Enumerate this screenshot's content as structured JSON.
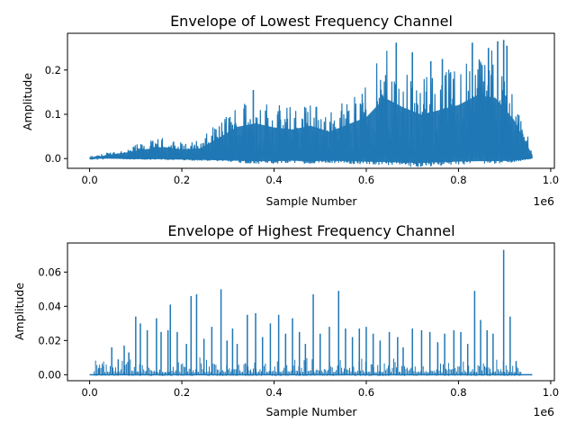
{
  "chart_data": [
    {
      "type": "line",
      "title": "Envelope of Lowest Frequency Channel",
      "xlabel": "Sample Number",
      "ylabel": "Amplitude",
      "x_offset_label": "1e6",
      "xlim": [
        -48000,
        1008000
      ],
      "ylim": [
        -0.022,
        0.283
      ],
      "xticks": [
        0,
        0.2,
        0.4,
        0.6,
        0.8,
        1.0
      ],
      "xtick_labels": [
        "0.0",
        "0.2",
        "0.4",
        "0.6",
        "0.8",
        "1.0"
      ],
      "yticks": [
        0.0,
        0.1,
        0.2
      ],
      "ytick_labels": [
        "0.0",
        "0.1",
        "0.2"
      ],
      "color": "#1f77b4",
      "series": [
        {
          "x": [
            0,
            40000,
            80000,
            120000,
            160000,
            200000,
            240000,
            280000,
            320000,
            360000,
            400000,
            440000,
            480000,
            520000,
            560000,
            600000,
            640000,
            680000,
            720000,
            760000,
            800000,
            840000,
            880000,
            920000,
            960000
          ],
          "upper": [
            0.002,
            0.015,
            0.025,
            0.038,
            0.048,
            0.038,
            0.042,
            0.085,
            0.13,
            0.145,
            0.128,
            0.12,
            0.135,
            0.11,
            0.14,
            0.17,
            0.25,
            0.21,
            0.18,
            0.2,
            0.22,
            0.26,
            0.25,
            0.16,
            0.015
          ],
          "lower": [
            0.0,
            0.0,
            -0.002,
            -0.003,
            -0.003,
            -0.004,
            -0.005,
            -0.008,
            -0.01,
            -0.012,
            -0.012,
            -0.01,
            -0.012,
            -0.01,
            -0.012,
            -0.014,
            -0.016,
            -0.018,
            -0.02,
            -0.016,
            -0.014,
            -0.012,
            -0.012,
            -0.01,
            0.0
          ],
          "peaks": [
            {
              "x": 355000,
              "y": 0.155
            },
            {
              "x": 665000,
              "y": 0.262
            },
            {
              "x": 700000,
              "y": 0.24
            },
            {
              "x": 740000,
              "y": 0.22
            },
            {
              "x": 765000,
              "y": 0.225
            },
            {
              "x": 830000,
              "y": 0.262
            },
            {
              "x": 865000,
              "y": 0.25
            },
            {
              "x": 885000,
              "y": 0.265
            },
            {
              "x": 898000,
              "y": 0.268
            },
            {
              "x": 905000,
              "y": 0.255
            }
          ]
        }
      ]
    },
    {
      "type": "line",
      "title": "Envelope of Highest Frequency Channel",
      "xlabel": "Sample Number",
      "ylabel": "Amplitude",
      "x_offset_label": "1e6",
      "xlim": [
        -48000,
        1008000
      ],
      "ylim": [
        -0.0035,
        0.077
      ],
      "xticks": [
        0,
        0.2,
        0.4,
        0.6,
        0.8,
        1.0
      ],
      "xtick_labels": [
        "0.0",
        "0.2",
        "0.4",
        "0.6",
        "0.8",
        "1.0"
      ],
      "yticks": [
        0.0,
        0.02,
        0.04,
        0.06
      ],
      "ytick_labels": [
        "0.00",
        "0.02",
        "0.04",
        "0.06"
      ],
      "color": "#1f77b4",
      "series": [
        {
          "spikes": [
            {
              "x": 20000,
              "y": 0.004
            },
            {
              "x": 30000,
              "y": 0.005
            },
            {
              "x": 48000,
              "y": 0.016
            },
            {
              "x": 62000,
              "y": 0.009
            },
            {
              "x": 75000,
              "y": 0.017
            },
            {
              "x": 85000,
              "y": 0.013
            },
            {
              "x": 100000,
              "y": 0.034
            },
            {
              "x": 110000,
              "y": 0.03
            },
            {
              "x": 125000,
              "y": 0.026
            },
            {
              "x": 145000,
              "y": 0.033
            },
            {
              "x": 155000,
              "y": 0.025
            },
            {
              "x": 170000,
              "y": 0.026
            },
            {
              "x": 175000,
              "y": 0.041
            },
            {
              "x": 190000,
              "y": 0.025
            },
            {
              "x": 210000,
              "y": 0.018
            },
            {
              "x": 220000,
              "y": 0.046
            },
            {
              "x": 232000,
              "y": 0.047
            },
            {
              "x": 248000,
              "y": 0.021
            },
            {
              "x": 265000,
              "y": 0.028
            },
            {
              "x": 285000,
              "y": 0.05
            },
            {
              "x": 298000,
              "y": 0.02
            },
            {
              "x": 310000,
              "y": 0.027
            },
            {
              "x": 320000,
              "y": 0.018
            },
            {
              "x": 342000,
              "y": 0.035
            },
            {
              "x": 360000,
              "y": 0.036
            },
            {
              "x": 375000,
              "y": 0.022
            },
            {
              "x": 392000,
              "y": 0.03
            },
            {
              "x": 410000,
              "y": 0.035
            },
            {
              "x": 425000,
              "y": 0.024
            },
            {
              "x": 440000,
              "y": 0.033
            },
            {
              "x": 455000,
              "y": 0.025
            },
            {
              "x": 468000,
              "y": 0.018
            },
            {
              "x": 485000,
              "y": 0.047
            },
            {
              "x": 500000,
              "y": 0.024
            },
            {
              "x": 520000,
              "y": 0.028
            },
            {
              "x": 540000,
              "y": 0.049
            },
            {
              "x": 555000,
              "y": 0.027
            },
            {
              "x": 570000,
              "y": 0.022
            },
            {
              "x": 585000,
              "y": 0.027
            },
            {
              "x": 600000,
              "y": 0.028
            },
            {
              "x": 615000,
              "y": 0.024
            },
            {
              "x": 630000,
              "y": 0.02
            },
            {
              "x": 650000,
              "y": 0.025
            },
            {
              "x": 668000,
              "y": 0.022
            },
            {
              "x": 680000,
              "y": 0.016
            },
            {
              "x": 700000,
              "y": 0.027
            },
            {
              "x": 720000,
              "y": 0.026
            },
            {
              "x": 738000,
              "y": 0.025
            },
            {
              "x": 755000,
              "y": 0.019
            },
            {
              "x": 770000,
              "y": 0.024
            },
            {
              "x": 790000,
              "y": 0.026
            },
            {
              "x": 805000,
              "y": 0.025
            },
            {
              "x": 820000,
              "y": 0.018
            },
            {
              "x": 835000,
              "y": 0.049
            },
            {
              "x": 848000,
              "y": 0.032
            },
            {
              "x": 862000,
              "y": 0.026
            },
            {
              "x": 875000,
              "y": 0.024
            },
            {
              "x": 898000,
              "y": 0.073
            },
            {
              "x": 912000,
              "y": 0.034
            },
            {
              "x": 925000,
              "y": 0.008
            }
          ]
        }
      ]
    }
  ]
}
